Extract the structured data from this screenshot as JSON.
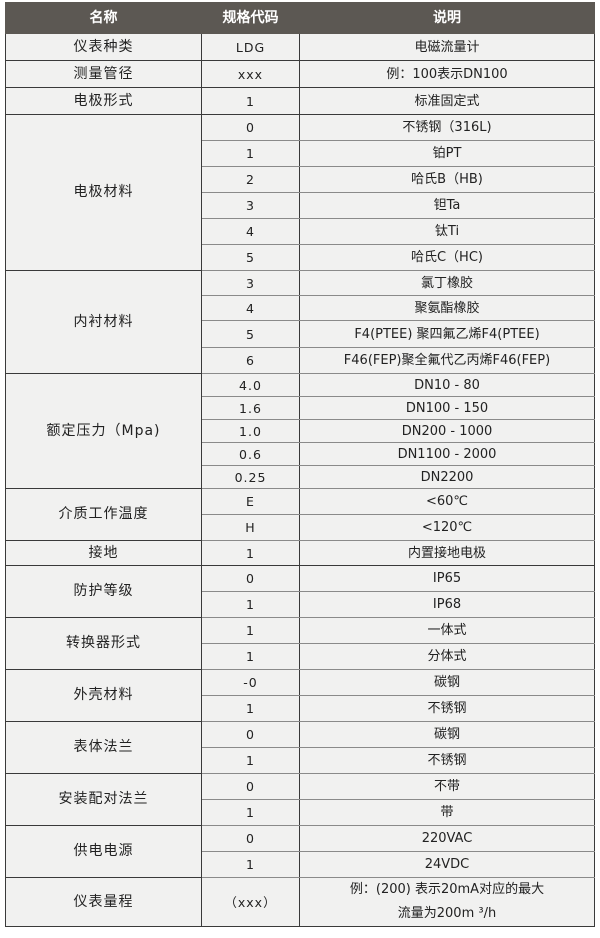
{
  "headers": [
    "名称",
    "规格代码",
    "说明"
  ],
  "groups": [
    {
      "name": "仪表种类",
      "rows": [
        [
          "LDG",
          "电磁流量计"
        ]
      ]
    },
    {
      "name": "测量管径",
      "rows": [
        [
          "xxx",
          "例：100表示DN100"
        ]
      ]
    },
    {
      "name": "电极形式",
      "rows": [
        [
          "1",
          "标准固定式"
        ]
      ]
    },
    {
      "name": "电极材料",
      "rows": [
        [
          "0",
          "不锈钢（316L)"
        ],
        [
          "1",
          "铂PT"
        ],
        [
          "2",
          "哈氏B（HB)"
        ],
        [
          "3",
          "钽Ta"
        ],
        [
          "4",
          "钛Ti"
        ],
        [
          "5",
          "哈氏C（HC)"
        ]
      ]
    },
    {
      "name": "内衬材料",
      "rows": [
        [
          "3",
          "氯丁橡胶"
        ],
        [
          "4",
          "聚氨酯橡胶"
        ],
        [
          "5",
          "F4(PTEE) 聚四氟乙烯F4(PTEE)"
        ],
        [
          "6",
          "F46(FEP)聚全氟代乙丙烯F46(FEP)"
        ]
      ]
    },
    {
      "name": "额定压力（Mpa)",
      "rows": [
        [
          "4.0",
          "DN10 - 80"
        ],
        [
          "1.6",
          "DN100 - 150"
        ],
        [
          "1.0",
          "DN200 - 1000"
        ],
        [
          "0.6",
          "DN1100 - 2000"
        ],
        [
          "0.25",
          "DN2200"
        ]
      ]
    },
    {
      "name": "介质工作温度",
      "rows": [
        [
          "E",
          "<60℃"
        ],
        [
          "H",
          "<120℃"
        ]
      ]
    },
    {
      "name": "接地",
      "rows": [
        [
          "1",
          "内置接地电极"
        ]
      ]
    },
    {
      "name": "防护等级",
      "rows": [
        [
          "0",
          "IP65"
        ],
        [
          "1",
          "IP68"
        ]
      ]
    },
    {
      "name": "转换器形式",
      "rows": [
        [
          "1",
          "一体式"
        ],
        [
          "1",
          "分体式"
        ]
      ]
    },
    {
      "name": "外壳材料",
      "rows": [
        [
          "-0",
          "碳钢"
        ],
        [
          "1",
          "不锈钢"
        ]
      ]
    },
    {
      "name": "表体法兰",
      "rows": [
        [
          "0",
          "碳钢"
        ],
        [
          "1",
          "不锈钢"
        ]
      ]
    },
    {
      "name": "安装配对法兰",
      "rows": [
        [
          "0",
          "不带"
        ],
        [
          "1",
          "带"
        ]
      ]
    },
    {
      "name": "供电电源",
      "rows": [
        [
          "0",
          "220VAC"
        ],
        [
          "1",
          "24VDC"
        ]
      ]
    },
    {
      "name": "仪表量程",
      "rows": [
        [
          "（xxx）",
          "例：(200) 表示20mA对应的最大\n流量为200m ³/h"
        ]
      ]
    }
  ]
}
